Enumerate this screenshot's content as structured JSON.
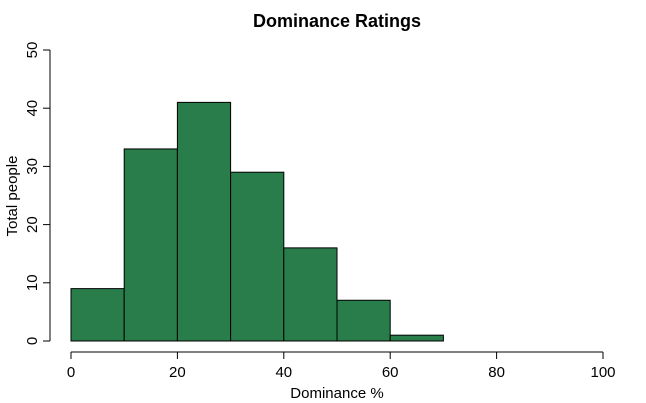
{
  "chart_data": {
    "type": "bar",
    "title": "Dominance Ratings",
    "xlabel": "Dominance %",
    "ylabel": "Total people",
    "xlim": [
      0,
      100
    ],
    "ylim": [
      0,
      50
    ],
    "x_ticks": [
      0,
      20,
      40,
      60,
      80,
      100
    ],
    "y_ticks": [
      0,
      10,
      20,
      30,
      40,
      50
    ],
    "bins": [
      {
        "start": 0,
        "end": 10,
        "value": 9
      },
      {
        "start": 10,
        "end": 20,
        "value": 33
      },
      {
        "start": 20,
        "end": 30,
        "value": 41
      },
      {
        "start": 30,
        "end": 40,
        "value": 29
      },
      {
        "start": 40,
        "end": 50,
        "value": 16
      },
      {
        "start": 50,
        "end": 60,
        "value": 7
      },
      {
        "start": 60,
        "end": 70,
        "value": 1
      }
    ],
    "bar_color": "#287d4b",
    "grid": false
  }
}
